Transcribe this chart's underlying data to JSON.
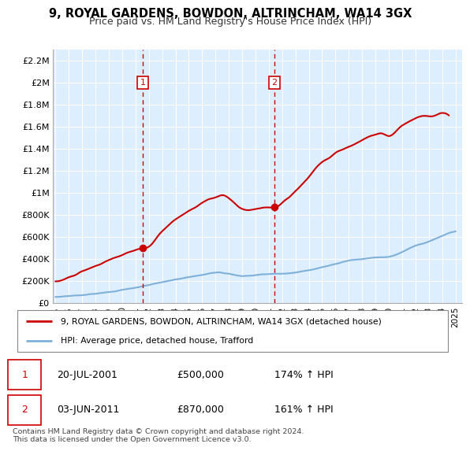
{
  "title": "9, ROYAL GARDENS, BOWDON, ALTRINCHAM, WA14 3GX",
  "subtitle": "Price paid vs. HM Land Registry's House Price Index (HPI)",
  "background_color": "#ffffff",
  "plot_bg_color": "#ddeeff",
  "grid_color": "#ffffff",
  "ylim": [
    0,
    2300000
  ],
  "xlim_start": 1994.8,
  "xlim_end": 2025.5,
  "yticks": [
    0,
    200000,
    400000,
    600000,
    800000,
    1000000,
    1200000,
    1400000,
    1600000,
    1800000,
    2000000,
    2200000
  ],
  "ytick_labels": [
    "£0",
    "£200K",
    "£400K",
    "£600K",
    "£800K",
    "£1M",
    "£1.2M",
    "£1.4M",
    "£1.6M",
    "£1.8M",
    "£2M",
    "£2.2M"
  ],
  "xticks": [
    1995,
    1996,
    1997,
    1998,
    1999,
    2000,
    2001,
    2002,
    2003,
    2004,
    2005,
    2006,
    2007,
    2008,
    2009,
    2010,
    2011,
    2012,
    2013,
    2014,
    2015,
    2016,
    2017,
    2018,
    2019,
    2020,
    2021,
    2022,
    2023,
    2024,
    2025
  ],
  "red_line_color": "#cc0000",
  "blue_line_color": "#7fb0d8",
  "marker1_year": 2001.55,
  "marker1_price": 500000,
  "marker2_year": 2011.42,
  "marker2_price": 870000,
  "legend_red_label": "9, ROYAL GARDENS, BOWDON, ALTRINCHAM, WA14 3GX (detached house)",
  "legend_blue_label": "HPI: Average price, detached house, Trafford",
  "sale1_date": "20-JUL-2001",
  "sale1_price": "£500,000",
  "sale1_hpi": "174% ↑ HPI",
  "sale2_date": "03-JUN-2011",
  "sale2_price": "£870,000",
  "sale2_hpi": "161% ↑ HPI",
  "footer": "Contains HM Land Registry data © Crown copyright and database right 2024.\nThis data is licensed under the Open Government Licence v3.0.",
  "red_data_x": [
    1995.0,
    1995.5,
    1996.0,
    1996.5,
    1997.0,
    1997.5,
    1998.0,
    1998.5,
    1999.0,
    1999.5,
    2000.0,
    2000.5,
    2001.0,
    2001.55,
    2002.0,
    2002.5,
    2003.0,
    2003.5,
    2004.0,
    2004.5,
    2005.0,
    2005.5,
    2006.0,
    2006.5,
    2007.0,
    2007.5,
    2008.0,
    2008.5,
    2009.0,
    2009.5,
    2010.0,
    2010.5,
    2011.0,
    2011.42,
    2012.0,
    2012.5,
    2013.0,
    2013.5,
    2014.0,
    2014.5,
    2015.0,
    2015.5,
    2016.0,
    2016.5,
    2017.0,
    2017.5,
    2018.0,
    2018.5,
    2019.0,
    2019.5,
    2020.0,
    2020.5,
    2021.0,
    2021.5,
    2022.0,
    2022.5,
    2023.0,
    2023.5,
    2024.0,
    2024.5
  ],
  "red_data_y": [
    195000,
    210000,
    235000,
    260000,
    290000,
    310000,
    340000,
    360000,
    390000,
    410000,
    435000,
    460000,
    480000,
    500000,
    520000,
    580000,
    650000,
    710000,
    760000,
    800000,
    840000,
    870000,
    910000,
    940000,
    960000,
    980000,
    950000,
    900000,
    860000,
    840000,
    855000,
    865000,
    870000,
    870000,
    910000,
    960000,
    1020000,
    1080000,
    1150000,
    1220000,
    1280000,
    1320000,
    1370000,
    1390000,
    1420000,
    1450000,
    1480000,
    1510000,
    1530000,
    1540000,
    1520000,
    1560000,
    1610000,
    1650000,
    1680000,
    1700000,
    1690000,
    1700000,
    1720000,
    1700000
  ],
  "hpi_data_x": [
    1995.0,
    1996.0,
    1997.0,
    1998.0,
    1999.0,
    2000.0,
    2001.0,
    2002.0,
    2003.0,
    2004.0,
    2005.0,
    2006.0,
    2007.0,
    2008.0,
    2009.0,
    2010.0,
    2011.0,
    2012.0,
    2013.0,
    2014.0,
    2015.0,
    2016.0,
    2017.0,
    2018.0,
    2019.0,
    2020.0,
    2021.0,
    2022.0,
    2023.0,
    2024.0,
    2025.0
  ],
  "hpi_data_y": [
    55000,
    65000,
    75000,
    85000,
    100000,
    120000,
    140000,
    165000,
    190000,
    215000,
    235000,
    255000,
    275000,
    265000,
    245000,
    255000,
    265000,
    268000,
    278000,
    300000,
    325000,
    355000,
    385000,
    400000,
    415000,
    420000,
    465000,
    520000,
    560000,
    610000,
    650000
  ]
}
